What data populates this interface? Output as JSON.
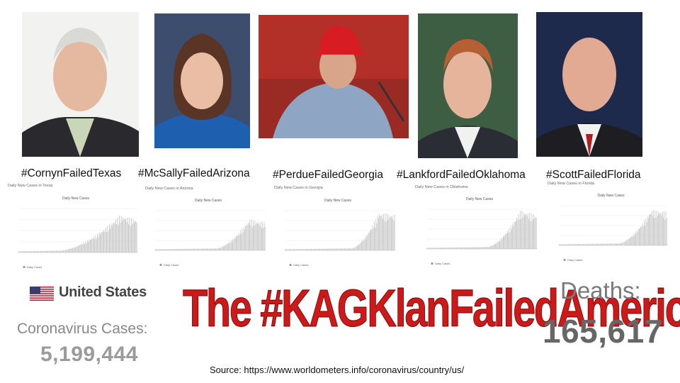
{
  "senators": [
    {
      "hashtag": "#CornynFailedTexas",
      "chart_title": "Daily New Cases in Texas",
      "icon": "senator-photo-cornyn"
    },
    {
      "hashtag": "#McSallyFailedArizona",
      "chart_title": "Daily New Cases in Arizona",
      "icon": "senator-photo-mcsally"
    },
    {
      "hashtag": "#PerdueFailedGeorgia",
      "chart_title": "Daily New Cases in Georgia",
      "icon": "senator-photo-perdue"
    },
    {
      "hashtag": "#LankfordFailedOklahoma",
      "chart_title": "Daily New Cases in Oklahoma",
      "icon": "senator-photo-lankford"
    },
    {
      "hashtag": "#ScottFailedFlorida",
      "chart_title": "Daily New Cases in Florida",
      "icon": "senator-photo-scott"
    }
  ],
  "mini_chart": {
    "heading": "Daily New Cases",
    "legend_daily": "Daily Cases"
  },
  "stats": {
    "country": "United States",
    "cases_label": "Coronavirus Cases:",
    "cases_value": "5,199,444",
    "deaths_label": "Deaths:",
    "deaths_value": "165,617"
  },
  "headline": "The #KAGKlanFailedAmerica",
  "source": "Source: https://www.worldometers.info/coronavirus/country/us/",
  "colors": {
    "headline": "#cc1a1a",
    "bars": "#c8c8c8"
  }
}
